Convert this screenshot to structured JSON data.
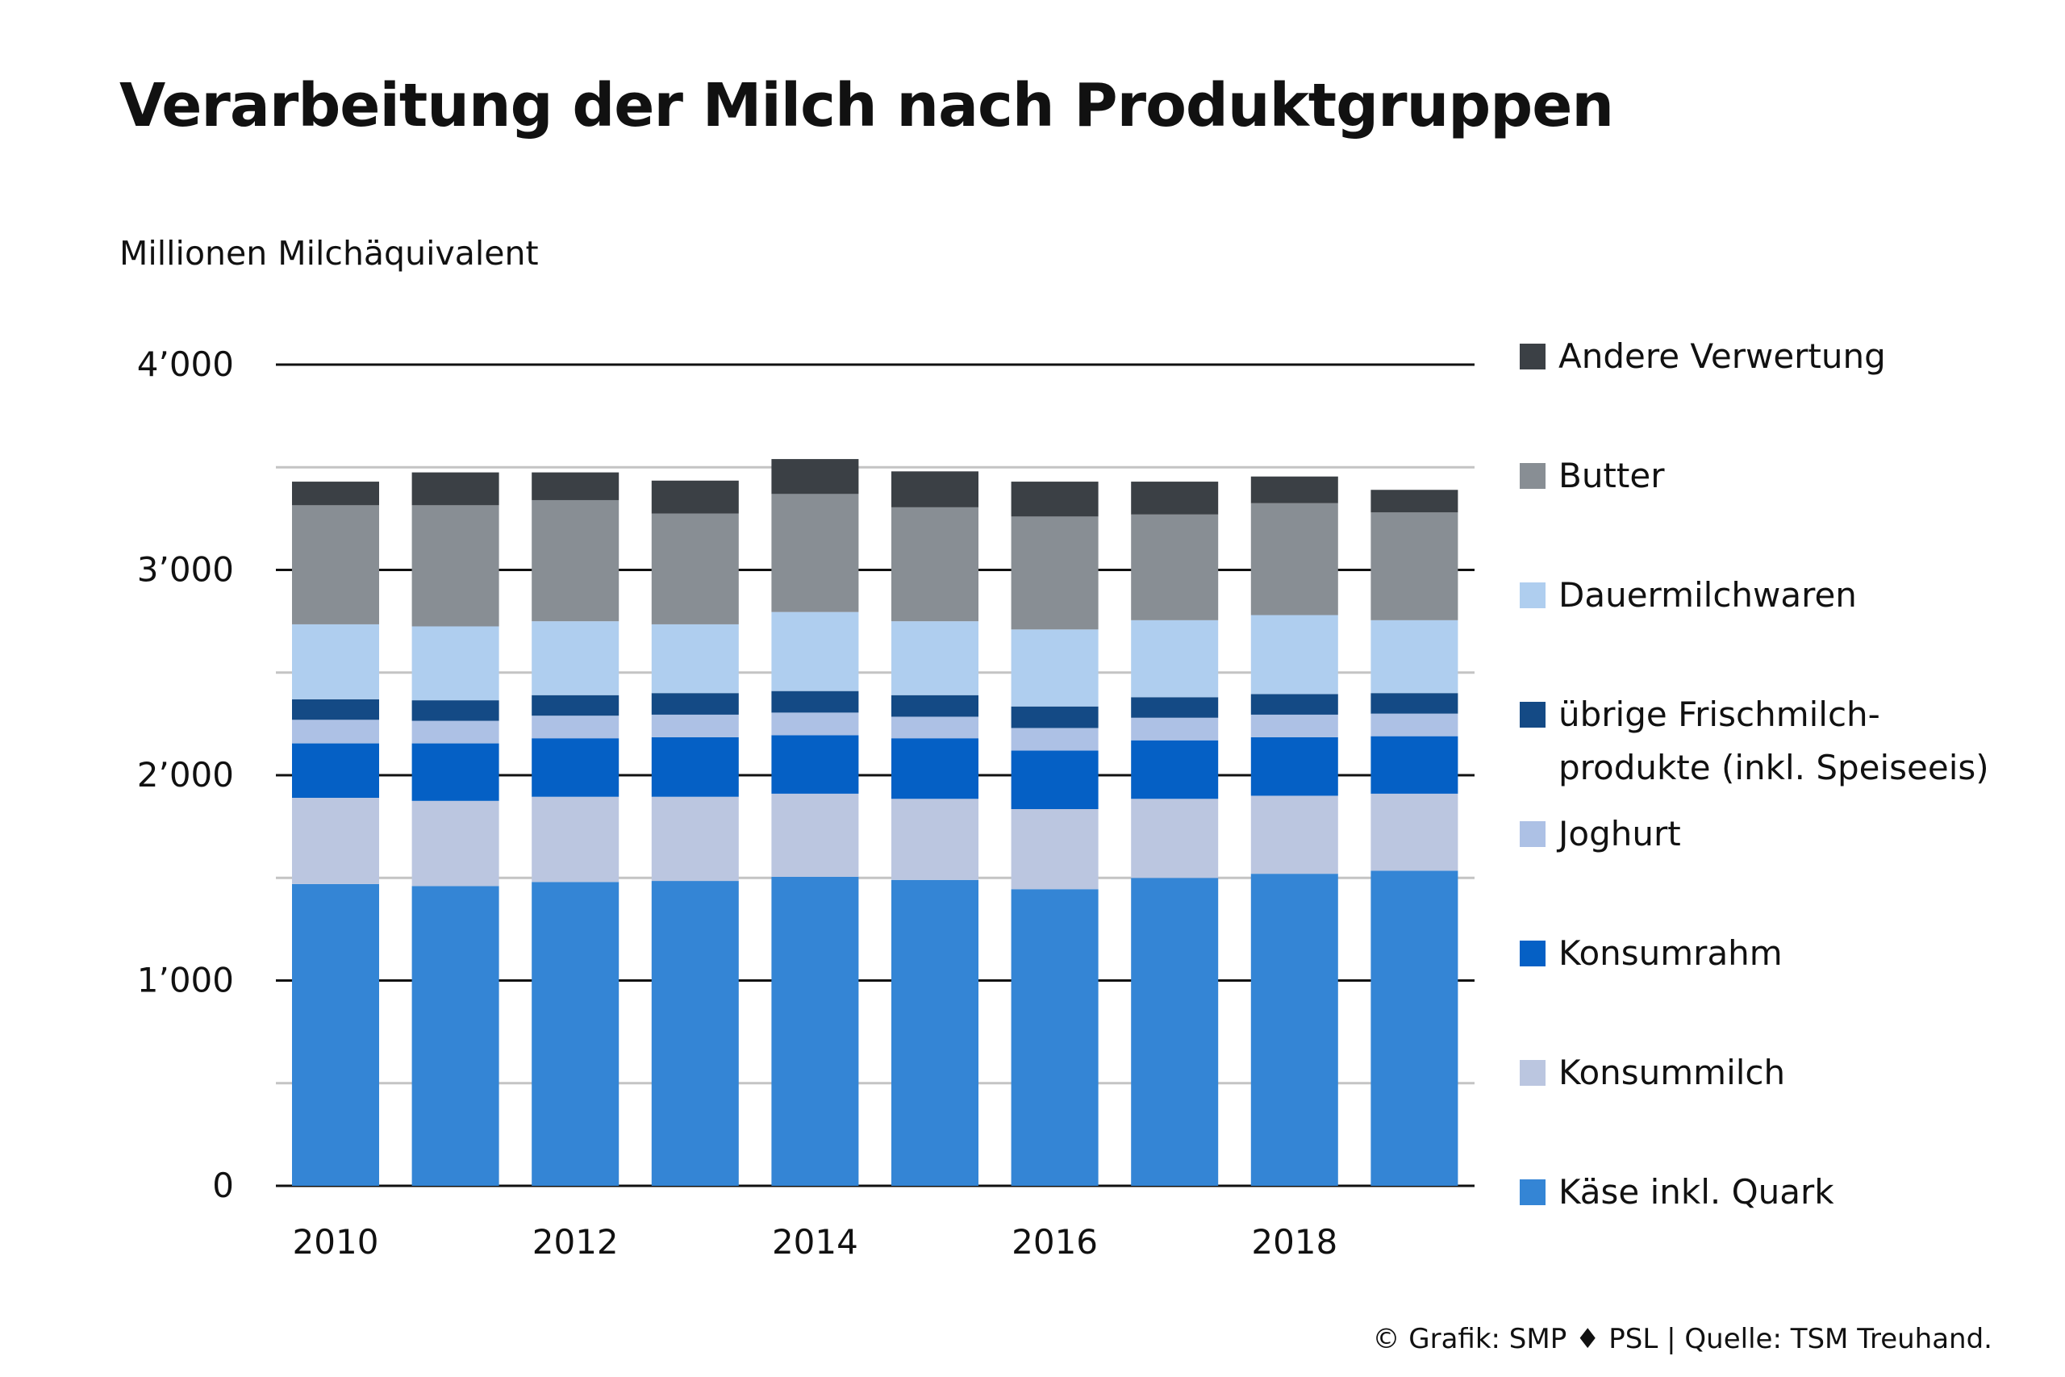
{
  "chart_data": {
    "type": "bar",
    "stacked": true,
    "title": "Verarbeitung der Milch nach Produktgruppen",
    "ylabel": "Millionen Milchäquivalent",
    "xlabel": "",
    "ylim": [
      0,
      4000
    ],
    "yticks": [
      0,
      1000,
      2000,
      3000,
      4000
    ],
    "ytick_labels": [
      "0",
      "1’000",
      "2’000",
      "3’000",
      "4’000"
    ],
    "minor_grid": [
      500,
      1500,
      2500,
      3500
    ],
    "categories": [
      2010,
      2011,
      2012,
      2013,
      2014,
      2015,
      2016,
      2017,
      2018,
      2019
    ],
    "xtick_labels": [
      {
        "year": 2010,
        "label": "2010"
      },
      {
        "year": 2012,
        "label": "2012"
      },
      {
        "year": 2014,
        "label": "2014"
      },
      {
        "year": 2016,
        "label": "2016"
      },
      {
        "year": 2018,
        "label": "2018"
      }
    ],
    "grid": true,
    "legend_position": "right",
    "series": [
      {
        "name": "Käse inkl. Quark",
        "color": "#3485D5",
        "values": [
          1470,
          1460,
          1480,
          1485,
          1505,
          1490,
          1445,
          1500,
          1520,
          1535
        ]
      },
      {
        "name": "Konsummilch",
        "color": "#BBC6E0",
        "values": [
          420,
          415,
          415,
          410,
          405,
          395,
          390,
          385,
          380,
          375
        ]
      },
      {
        "name": "Konsumrahm",
        "color": "#0560C5",
        "values": [
          265,
          280,
          285,
          290,
          285,
          295,
          285,
          285,
          285,
          280
        ]
      },
      {
        "name": "Joghurt",
        "color": "#ADC1E5",
        "values": [
          115,
          110,
          110,
          110,
          110,
          105,
          110,
          110,
          110,
          110
        ]
      },
      {
        "name": "übrige Frischmilch-\nprodukte (inkl. Speiseeis)",
        "color": "#144A85",
        "values": [
          100,
          100,
          100,
          105,
          105,
          105,
          105,
          100,
          100,
          100
        ]
      },
      {
        "name": "Dauermilchwaren",
        "color": "#AFCEEF",
        "values": [
          365,
          360,
          360,
          335,
          385,
          360,
          375,
          375,
          385,
          355
        ]
      },
      {
        "name": "Butter",
        "color": "#888E94",
        "values": [
          580,
          590,
          590,
          540,
          575,
          555,
          550,
          515,
          545,
          525
        ]
      },
      {
        "name": "Andere Verwertung",
        "color": "#3B4045",
        "values": [
          115,
          160,
          135,
          160,
          170,
          175,
          170,
          160,
          130,
          110
        ]
      }
    ],
    "legend_order": [
      "Andere Verwertung",
      "Butter",
      "Dauermilchwaren",
      "übrige Frischmilch-\nprodukte (inkl. Speiseeis)",
      "Joghurt",
      "Konsumrahm",
      "Konsummilch",
      "Käse inkl. Quark"
    ]
  },
  "source": "© Grafik: SMP ♦ PSL | Quelle: TSM Treuhand."
}
